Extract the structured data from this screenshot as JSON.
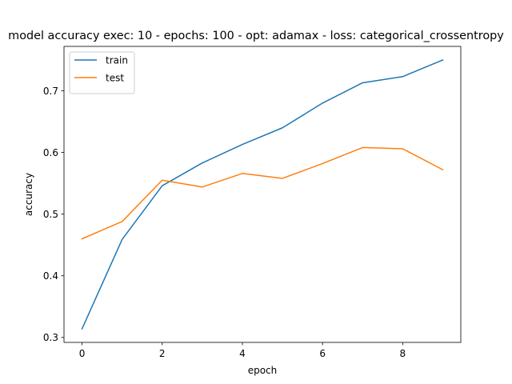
{
  "chart_data": {
    "type": "line",
    "title": "model accuracy exec: 10 - epochs: 100 - opt: adamax - loss: categorical_crossentropy",
    "xlabel": "epoch",
    "ylabel": "accuracy",
    "x": [
      0,
      1,
      2,
      3,
      4,
      5,
      6,
      7,
      8,
      9
    ],
    "xlim": [
      -0.45,
      9.45
    ],
    "ylim": [
      0.292,
      0.772
    ],
    "xticks": [
      0,
      2,
      4,
      6,
      8
    ],
    "yticks": [
      0.3,
      0.4,
      0.5,
      0.6,
      0.7
    ],
    "xtick_labels": [
      "0",
      "2",
      "4",
      "6",
      "8"
    ],
    "ytick_labels": [
      "0.3",
      "0.4",
      "0.5",
      "0.6",
      "0.7"
    ],
    "grid": false,
    "legend_position": "upper-left",
    "series": [
      {
        "name": "train",
        "color": "#1f77b4",
        "values": [
          0.314,
          0.459,
          0.546,
          0.583,
          0.613,
          0.64,
          0.68,
          0.713,
          0.723,
          0.75
        ]
      },
      {
        "name": "test",
        "color": "#ff7f0e",
        "values": [
          0.46,
          0.488,
          0.555,
          0.544,
          0.566,
          0.558,
          0.582,
          0.608,
          0.606,
          0.572
        ]
      }
    ]
  }
}
